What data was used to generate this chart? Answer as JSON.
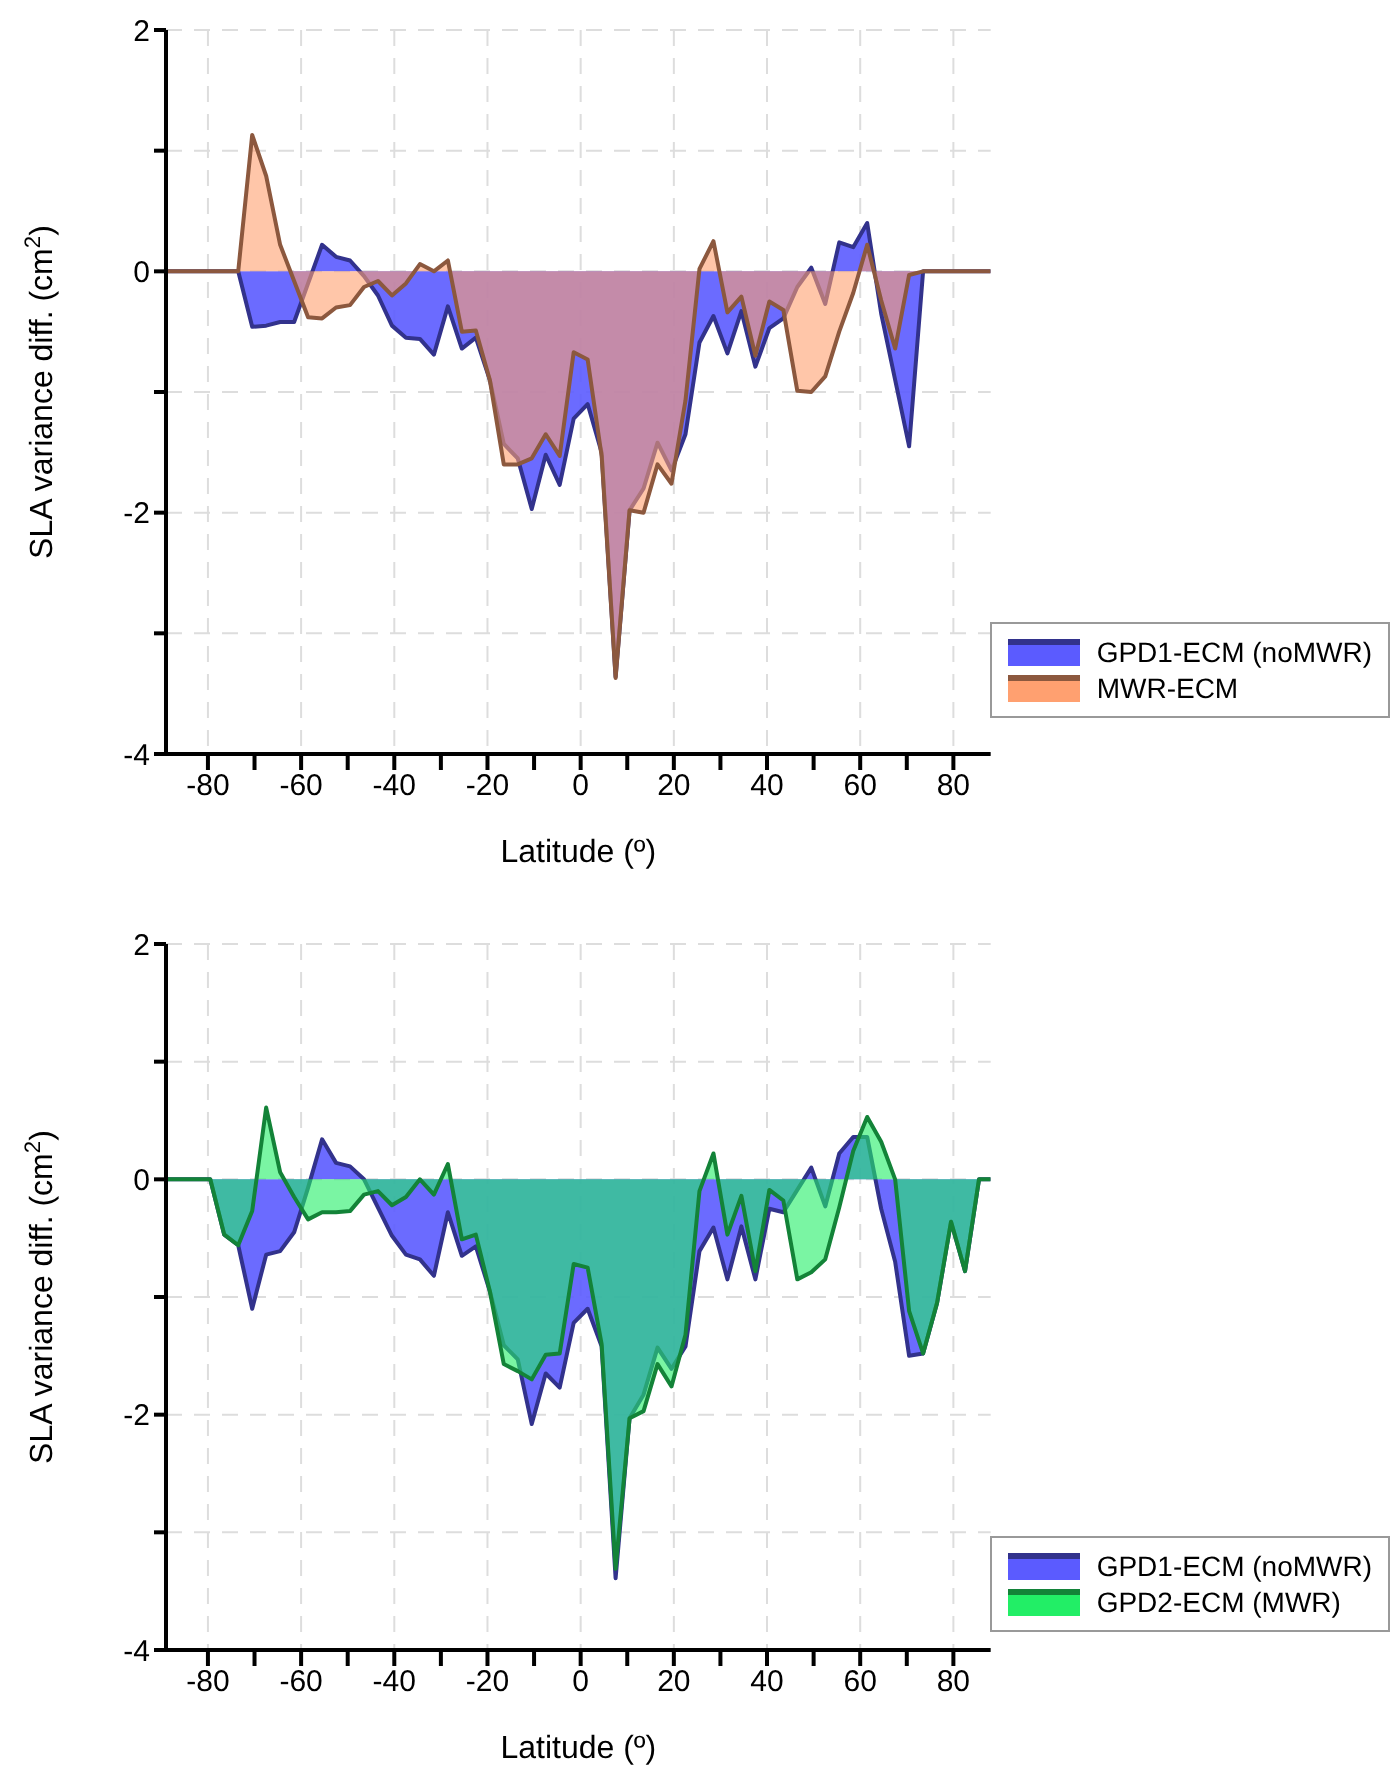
{
  "chart_data": [
    {
      "type": "area",
      "x": [
        -89,
        -73.5,
        -70.5,
        -67.5,
        -64.5,
        -61.5,
        -58.5,
        -55.5,
        -52.5,
        -49.5,
        -46.5,
        -43.5,
        -40.5,
        -37.5,
        -34.5,
        -31.5,
        -28.5,
        -25.5,
        -22.5,
        -19.5,
        -16.5,
        -13.5,
        -10.5,
        -7.5,
        -4.5,
        -1.5,
        1.5,
        4.5,
        7.5,
        10.5,
        13.5,
        16.5,
        19.5,
        22.5,
        25.5,
        28.5,
        31.5,
        34.5,
        37.5,
        40.5,
        43.5,
        46.5,
        49.5,
        52.5,
        55.5,
        58.5,
        61.5,
        64.5,
        67.5,
        70.5,
        73.5,
        88
      ],
      "series": [
        {
          "name": "GPD1-ECM (noMWR)",
          "color": "#5b5bff",
          "values": [
            0,
            0,
            -0.46,
            -0.45,
            -0.42,
            -0.42,
            -0.1,
            0.22,
            0.12,
            0.09,
            -0.04,
            -0.2,
            -0.45,
            -0.55,
            -0.56,
            -0.69,
            -0.29,
            -0.64,
            -0.55,
            -0.9,
            -1.43,
            -1.55,
            -1.97,
            -1.52,
            -1.77,
            -1.22,
            -1.1,
            -1.5,
            -3.36,
            -1.98,
            -1.8,
            -1.42,
            -1.65,
            -1.35,
            -0.59,
            -0.37,
            -0.68,
            -0.33,
            -0.79,
            -0.47,
            -0.39,
            -0.13,
            0.03,
            -0.27,
            0.24,
            0.2,
            0.4,
            -0.35,
            -0.9,
            -1.45,
            0,
            0
          ]
        },
        {
          "name": "MWR-ECM",
          "color": "#ffa070",
          "values": [
            0,
            0,
            1.13,
            0.79,
            0.22,
            -0.08,
            -0.38,
            -0.39,
            -0.3,
            -0.28,
            -0.13,
            -0.08,
            -0.2,
            -0.1,
            0.06,
            0,
            0.09,
            -0.5,
            -0.49,
            -0.9,
            -1.6,
            -1.6,
            -1.55,
            -1.35,
            -1.53,
            -0.67,
            -0.73,
            -1.53,
            -3.37,
            -1.98,
            -2.0,
            -1.6,
            -1.76,
            -1.07,
            0.02,
            0.25,
            -0.34,
            -0.21,
            -0.7,
            -0.25,
            -0.32,
            -0.99,
            -1.0,
            -0.87,
            -0.5,
            -0.18,
            0.22,
            -0.24,
            -0.64,
            -0.03,
            0,
            0
          ]
        }
      ],
      "xlim": [
        -89,
        88
      ],
      "xticks": [
        -80,
        {
          "value": -70,
          "label": null
        },
        -60,
        {
          "value": -50,
          "label": null
        },
        -40,
        {
          "value": -30,
          "label": null
        },
        -20,
        {
          "value": -10,
          "label": null
        },
        0,
        {
          "value": 10,
          "label": null
        },
        20,
        {
          "value": 30,
          "label": null
        },
        40,
        {
          "value": 50,
          "label": null
        },
        60,
        {
          "value": 70,
          "label": null
        },
        80
      ],
      "ylim": [
        -4,
        2
      ],
      "yticks": [
        -4,
        {
          "value": -3,
          "label": null
        },
        -2,
        {
          "value": -1,
          "label": null
        },
        0,
        {
          "value": 1,
          "label": null
        },
        2
      ],
      "xlabel": "Latitude (º)",
      "ylabel": "SLA variance diff. (cm$^{2}$)",
      "grid": true,
      "legend": "bottom right"
    },
    {
      "type": "area",
      "x": [
        -89,
        -79.5,
        -76.5,
        -73.5,
        -70.5,
        -67.5,
        -64.5,
        -61.5,
        -58.5,
        -55.5,
        -52.5,
        -49.5,
        -46.5,
        -43.5,
        -40.5,
        -37.5,
        -34.5,
        -31.5,
        -28.5,
        -25.5,
        -22.5,
        -19.5,
        -16.5,
        -13.5,
        -10.5,
        -7.5,
        -4.5,
        -1.5,
        1.5,
        4.5,
        7.5,
        10.5,
        13.5,
        16.5,
        19.5,
        22.5,
        25.5,
        28.5,
        31.5,
        34.5,
        37.5,
        40.5,
        43.5,
        46.5,
        49.5,
        52.5,
        55.5,
        58.5,
        61.5,
        64.5,
        67.5,
        70.5,
        73.5,
        76.5,
        79.5,
        82.5,
        85.5,
        88
      ],
      "series": [
        {
          "name": "GPD1-ECM (noMWR)",
          "color": "#5b5bff",
          "values": [
            0,
            0,
            -0.47,
            -0.56,
            -1.1,
            -0.64,
            -0.61,
            -0.45,
            -0.07,
            0.34,
            0.14,
            0.11,
            0,
            -0.24,
            -0.48,
            -0.64,
            -0.68,
            -0.82,
            -0.28,
            -0.65,
            -0.57,
            -0.95,
            -1.41,
            -1.53,
            -2.08,
            -1.65,
            -1.77,
            -1.22,
            -1.1,
            -1.42,
            -3.39,
            -2.03,
            -1.83,
            -1.43,
            -1.61,
            -1.42,
            -0.61,
            -0.41,
            -0.85,
            -0.4,
            -0.85,
            -0.25,
            -0.28,
            -0.09,
            0.1,
            -0.23,
            0.22,
            0.36,
            0.36,
            -0.25,
            -0.7,
            -1.5,
            -1.48,
            -1.05,
            -0.36,
            -0.78,
            0,
            0
          ]
        },
        {
          "name": "GPD2-ECM (MWR)",
          "color": "#22ee66",
          "values": [
            0,
            0,
            -0.47,
            -0.56,
            -0.27,
            0.61,
            0.06,
            -0.15,
            -0.34,
            -0.28,
            -0.28,
            -0.27,
            -0.13,
            -0.1,
            -0.22,
            -0.15,
            0,
            -0.13,
            0.13,
            -0.51,
            -0.47,
            -0.95,
            -1.57,
            -1.63,
            -1.7,
            -1.49,
            -1.48,
            -0.72,
            -0.75,
            -1.4,
            -3.31,
            -2.03,
            -1.97,
            -1.57,
            -1.76,
            -1.32,
            -0.1,
            0.22,
            -0.47,
            -0.14,
            -0.78,
            -0.09,
            -0.18,
            -0.85,
            -0.79,
            -0.68,
            -0.24,
            0.24,
            0.53,
            0.32,
            0,
            -1.12,
            -1.48,
            -1.05,
            -0.36,
            -0.78,
            0,
            0
          ]
        }
      ],
      "xlim": [
        -89,
        88
      ],
      "xticks": [
        -80,
        {
          "value": -70,
          "label": null
        },
        -60,
        {
          "value": -50,
          "label": null
        },
        -40,
        {
          "value": -30,
          "label": null
        },
        -20,
        {
          "value": -10,
          "label": null
        },
        0,
        {
          "value": 10,
          "label": null
        },
        20,
        {
          "value": 30,
          "label": null
        },
        40,
        {
          "value": 50,
          "label": null
        },
        60,
        {
          "value": 70,
          "label": null
        },
        80
      ],
      "ylim": [
        -4,
        2
      ],
      "yticks": [
        -4,
        {
          "value": -3,
          "label": null
        },
        -2,
        {
          "value": -1,
          "label": null
        },
        0,
        {
          "value": 1,
          "label": null
        },
        2
      ],
      "xlabel": "Latitude (º)",
      "ylabel": "SLA variance diff. (cm$^{2}$)",
      "grid": true,
      "legend": "bottom right"
    }
  ]
}
